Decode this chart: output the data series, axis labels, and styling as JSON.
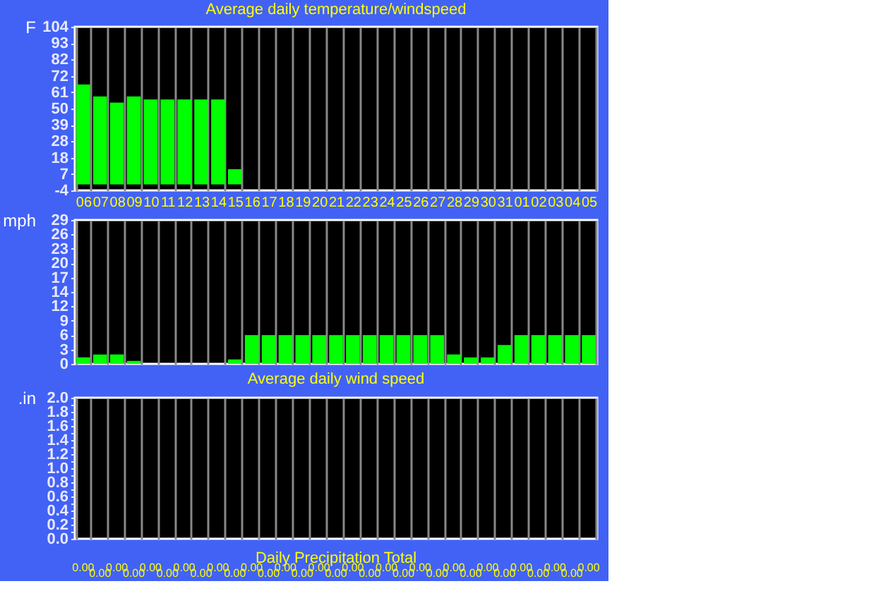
{
  "chart_data": [
    {
      "type": "bar",
      "title": "Average daily temperature/windspeed",
      "ylabel": "F",
      "categories": [
        "06",
        "07",
        "08",
        "09",
        "10",
        "11",
        "12",
        "13",
        "14",
        "15",
        "16",
        "17",
        "18",
        "19",
        "20",
        "21",
        "22",
        "23",
        "24",
        "25",
        "26",
        "27",
        "28",
        "29",
        "30",
        "31",
        "01",
        "02",
        "03",
        "04",
        "05"
      ],
      "values": [
        66,
        58,
        54,
        58,
        56,
        56,
        56,
        56,
        56,
        10,
        null,
        null,
        null,
        null,
        null,
        null,
        null,
        null,
        null,
        null,
        null,
        null,
        null,
        null,
        null,
        null,
        null,
        null,
        null,
        null,
        null
      ],
      "color": "#00ff00",
      "ylim": [
        -4,
        104
      ],
      "yticks": [
        -4,
        {
          "value": 6.8,
          "label": "7"
        },
        {
          "value": 17.6,
          "label": "18"
        },
        {
          "value": 28.4,
          "label": "28"
        },
        {
          "value": 39.2,
          "label": "39"
        },
        50,
        {
          "value": 60.8,
          "label": "61"
        },
        {
          "value": 71.6,
          "label": "72"
        },
        {
          "value": 82.4,
          "label": "82"
        },
        {
          "value": 93.2,
          "label": "93"
        },
        104
      ],
      "grid": "x"
    },
    {
      "type": "bar",
      "title": "Average daily wind speed",
      "ylabel": "mph",
      "categories": [
        "06",
        "07",
        "08",
        "09",
        "10",
        "11",
        "12",
        "13",
        "14",
        "15",
        "16",
        "17",
        "18",
        "19",
        "20",
        "21",
        "22",
        "23",
        "24",
        "25",
        "26",
        "27",
        "28",
        "29",
        "30",
        "31",
        "01",
        "02",
        "03",
        "04",
        "05"
      ],
      "values": [
        1.3,
        1.9,
        1.9,
        0.6,
        0,
        0,
        0,
        0,
        0,
        0.9,
        5.8,
        5.8,
        5.8,
        5.8,
        5.8,
        5.8,
        5.8,
        5.8,
        5.8,
        5.8,
        5.8,
        5.8,
        1.9,
        1.3,
        1.3,
        3.8,
        5.8,
        5.8,
        5.8,
        5.8,
        5.8
      ],
      "color": "#00ff00",
      "ylim": [
        0,
        29
      ],
      "yticks": [
        0,
        {
          "value": 2.9,
          "label": "3"
        },
        {
          "value": 5.8,
          "label": "6"
        },
        {
          "value": 8.7,
          "label": "9"
        },
        {
          "value": 11.6,
          "label": "12"
        },
        {
          "value": 14.5,
          "label": "14"
        },
        {
          "value": 17.4,
          "label": "17"
        },
        {
          "value": 20.3,
          "label": "20"
        },
        {
          "value": 23.2,
          "label": "23"
        },
        {
          "value": 26.1,
          "label": "26"
        },
        29
      ],
      "grid": "x",
      "tick_labels": "y"
    },
    {
      "type": "bar",
      "title": "Daily Precipitation Total",
      "ylabel": ".in",
      "categories": [
        "06",
        "07",
        "08",
        "09",
        "10",
        "11",
        "12",
        "13",
        "14",
        "15",
        "16",
        "17",
        "18",
        "19",
        "20",
        "21",
        "22",
        "23",
        "24",
        "25",
        "26",
        "27",
        "28",
        "29",
        "30",
        "31",
        "01",
        "02",
        "03",
        "04",
        "05"
      ],
      "values": [
        0,
        0,
        0,
        0,
        0,
        0,
        0,
        0,
        0,
        0,
        0,
        0,
        0,
        0,
        0,
        0,
        0,
        0,
        0,
        0,
        0,
        0,
        0,
        0,
        0,
        0,
        0,
        0,
        0,
        0,
        0
      ],
      "value_labels": [
        "0.00",
        "0.00",
        "0.00",
        "0.00",
        "0.00",
        "0.00",
        "0.00",
        "0.00",
        "0.00",
        "0.00",
        "0.00",
        "0.00",
        "0.00",
        "0.00",
        "0.00",
        "0.00",
        "0.00",
        "0.00",
        "0.00",
        "0.00",
        "0.00",
        "0.00",
        "0.00",
        "0.00",
        "0.00",
        "0.00",
        "0.00",
        "0.00",
        "0.00",
        "0.00",
        "0.00"
      ],
      "color": "#00ff00",
      "ylim": [
        0,
        2
      ],
      "yticks": [
        {
          "value": 0,
          "label": "0.0"
        },
        {
          "value": 0.1,
          "label": null
        },
        {
          "value": 0.2,
          "label": "0.2"
        },
        {
          "value": 0.3,
          "label": null
        },
        {
          "value": 0.4,
          "label": "0.4"
        },
        {
          "value": 0.5,
          "label": null
        },
        {
          "value": 0.6,
          "label": "0.6"
        },
        {
          "value": 0.7,
          "label": null
        },
        {
          "value": 0.8,
          "label": "0.8"
        },
        {
          "value": 0.9,
          "label": null
        },
        {
          "value": 1.0,
          "label": "1.0"
        },
        {
          "value": 1.1,
          "label": null
        },
        {
          "value": 1.2,
          "label": "1.2"
        },
        {
          "value": 1.3,
          "label": null
        },
        {
          "value": 1.4,
          "label": "1.4"
        },
        {
          "value": 1.5,
          "label": null
        },
        {
          "value": 1.6,
          "label": "1.6"
        },
        {
          "value": 1.7,
          "label": null
        },
        {
          "value": 1.8,
          "label": "1.8"
        },
        {
          "value": 1.9,
          "label": null
        },
        {
          "value": 2.0,
          "label": "2.0"
        }
      ],
      "grid": "x",
      "tick_labels": "y"
    }
  ]
}
